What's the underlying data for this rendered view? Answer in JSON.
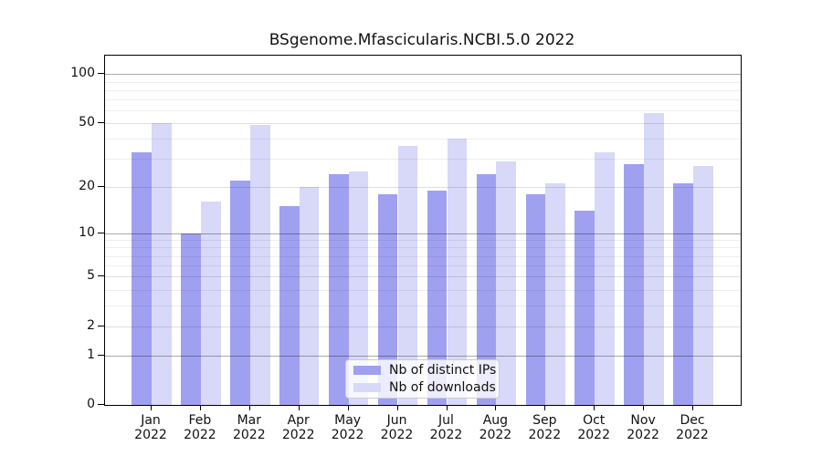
{
  "title": "BSgenome.Mfascicularis.NCBI.5.0 2022",
  "background_color": "#ffffff",
  "chart_data": {
    "type": "bar",
    "title": "BSgenome.Mfascicularis.NCBI.5.0 2022",
    "y_scale": "log10(1+x)",
    "ylim": [
      0,
      130
    ],
    "grid": true,
    "legend_position": "bottom-center",
    "categories": [
      "Jan",
      "Feb",
      "Mar",
      "Apr",
      "May",
      "Jun",
      "Jul",
      "Aug",
      "Sep",
      "Oct",
      "Nov",
      "Dec"
    ],
    "x_tick_year": "2022",
    "series": [
      {
        "name": "Nb of distinct IPs",
        "color": "#a0a0f0",
        "values": [
          33,
          10,
          22,
          15,
          24,
          18,
          19,
          24,
          18,
          14,
          28,
          21
        ]
      },
      {
        "name": "Nb of downloads",
        "color": "#d8d8f8",
        "values": [
          50,
          16,
          49,
          20,
          25,
          36,
          40,
          29,
          21,
          33,
          58,
          27
        ]
      }
    ],
    "y_ticks": [
      100,
      50,
      20,
      10,
      5,
      2,
      1,
      0
    ],
    "gridlines": {
      "major": [
        1,
        10,
        100
      ],
      "mid": [
        2,
        5,
        20,
        50
      ],
      "minor": [
        3,
        4,
        6,
        7,
        8,
        9,
        30,
        40,
        60,
        70,
        80,
        90
      ]
    }
  }
}
